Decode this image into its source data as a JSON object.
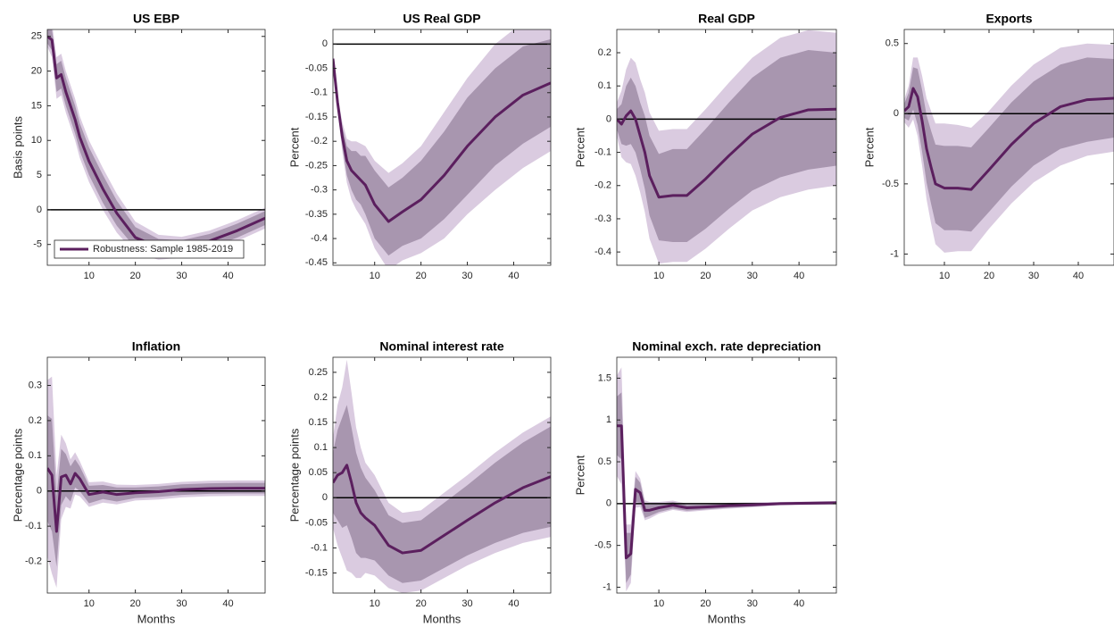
{
  "chart_data": [
    {
      "type": "line",
      "title": "US EBP",
      "ylabel": "Basis points",
      "legend": "lower left",
      "x": [
        1,
        2,
        3,
        4,
        5,
        6,
        7,
        8,
        10,
        13,
        16,
        20,
        25,
        30,
        36,
        42,
        48
      ],
      "xlim": [
        1,
        48
      ],
      "xticks": [
        10,
        20,
        30,
        40
      ],
      "ylim": [
        -8,
        26
      ],
      "yticks": [
        -5,
        0,
        5,
        10,
        15,
        20,
        25
      ],
      "hline": 0,
      "series": [
        {
          "name": "Robustness: Sample 1985-2019",
          "color": "#5b1f5e",
          "values": [
            25,
            24.5,
            19,
            19.5,
            17,
            15,
            13,
            10.5,
            7,
            3,
            -0.5,
            -4,
            -5.4,
            -5.4,
            -4.5,
            -3,
            -1.2
          ]
        }
      ],
      "bands": [
        {
          "color": "#dacbe0",
          "upper": [
            26.5,
            27,
            22,
            22.5,
            20,
            18,
            16,
            13.5,
            10,
            6,
            2.3,
            -1.7,
            -3.6,
            -3.9,
            -3,
            -1.5,
            0.3
          ],
          "lower": [
            23.5,
            22,
            16,
            16.5,
            14,
            12,
            10,
            7.5,
            4,
            0,
            -3.3,
            -6.3,
            -7.2,
            -6.9,
            -6,
            -4.5,
            -2.7
          ]
        },
        {
          "color": "#a896af",
          "upper": [
            26,
            26,
            21,
            21.5,
            19,
            17,
            15,
            12.5,
            9,
            5,
            1.3,
            -2.5,
            -4.2,
            -4.4,
            -3.5,
            -2,
            -0.2
          ],
          "lower": [
            24,
            23,
            17,
            17.5,
            15,
            13,
            11,
            8.5,
            5,
            1,
            -2.3,
            -5.5,
            -6.6,
            -6.4,
            -5.5,
            -4,
            -2.2
          ]
        }
      ]
    },
    {
      "type": "line",
      "title": "US Real GDP",
      "ylabel": "Percent",
      "x": [
        1,
        2,
        3,
        4,
        5,
        6,
        7,
        8,
        10,
        13,
        16,
        20,
        25,
        30,
        36,
        42,
        48
      ],
      "xlim": [
        1,
        48
      ],
      "xticks": [
        10,
        20,
        30,
        40
      ],
      "ylim": [
        -0.455,
        0.03
      ],
      "yticks": [
        -0.45,
        -0.4,
        -0.35,
        -0.3,
        -0.25,
        -0.2,
        -0.15,
        -0.1,
        -0.05,
        0
      ],
      "hline": 0,
      "series": [
        {
          "color": "#5b1f5e",
          "values": [
            -0.03,
            -0.12,
            -0.19,
            -0.24,
            -0.26,
            -0.27,
            -0.28,
            -0.29,
            -0.33,
            -0.365,
            -0.345,
            -0.32,
            -0.27,
            -0.21,
            -0.15,
            -0.105,
            -0.08
          ]
        }
      ],
      "bands": [
        {
          "color": "#dacbe0",
          "upper": [
            -0.03,
            -0.105,
            -0.16,
            -0.195,
            -0.2,
            -0.2,
            -0.205,
            -0.21,
            -0.24,
            -0.265,
            -0.245,
            -0.21,
            -0.14,
            -0.07,
            0,
            0.045,
            0.06
          ],
          "lower": [
            -0.03,
            -0.135,
            -0.22,
            -0.285,
            -0.32,
            -0.34,
            -0.355,
            -0.37,
            -0.42,
            -0.465,
            -0.445,
            -0.43,
            -0.4,
            -0.35,
            -0.3,
            -0.255,
            -0.22
          ]
        },
        {
          "color": "#a896af",
          "upper": [
            -0.03,
            -0.11,
            -0.17,
            -0.21,
            -0.22,
            -0.22,
            -0.23,
            -0.23,
            -0.26,
            -0.295,
            -0.275,
            -0.24,
            -0.18,
            -0.11,
            -0.05,
            -0.005,
            0.01
          ],
          "lower": [
            -0.03,
            -0.13,
            -0.21,
            -0.27,
            -0.3,
            -0.32,
            -0.33,
            -0.35,
            -0.4,
            -0.435,
            -0.415,
            -0.4,
            -0.36,
            -0.31,
            -0.25,
            -0.205,
            -0.17
          ]
        }
      ]
    },
    {
      "type": "line",
      "title": "Real GDP",
      "ylabel": "Percent",
      "x": [
        1,
        2,
        3,
        4,
        5,
        6,
        7,
        8,
        10,
        13,
        16,
        20,
        25,
        30,
        36,
        42,
        48
      ],
      "xlim": [
        1,
        48
      ],
      "xticks": [
        10,
        20,
        30,
        40
      ],
      "ylim": [
        -0.44,
        0.27
      ],
      "yticks": [
        -0.4,
        -0.3,
        -0.2,
        -0.1,
        0,
        0.1,
        0.2
      ],
      "hline": 0,
      "series": [
        {
          "color": "#5b1f5e",
          "values": [
            0,
            -0.015,
            0.01,
            0.025,
            0,
            -0.05,
            -0.1,
            -0.17,
            -0.235,
            -0.23,
            -0.23,
            -0.18,
            -0.11,
            -0.045,
            0.005,
            0.028,
            0.03
          ]
        }
      ],
      "bands": [
        {
          "color": "#dacbe0",
          "upper": [
            0.05,
            0.085,
            0.15,
            0.185,
            0.17,
            0.12,
            0.08,
            0.02,
            -0.035,
            -0.03,
            -0.03,
            0.03,
            0.11,
            0.185,
            0.245,
            0.268,
            0.26
          ],
          "lower": [
            -0.05,
            -0.115,
            -0.13,
            -0.135,
            -0.17,
            -0.22,
            -0.28,
            -0.36,
            -0.435,
            -0.43,
            -0.43,
            -0.39,
            -0.33,
            -0.275,
            -0.235,
            -0.212,
            -0.2
          ]
        },
        {
          "color": "#a896af",
          "upper": [
            0.03,
            0.045,
            0.1,
            0.125,
            0.1,
            0.05,
            0.01,
            -0.05,
            -0.105,
            -0.09,
            -0.09,
            -0.03,
            0.05,
            0.125,
            0.185,
            0.208,
            0.2
          ],
          "lower": [
            -0.03,
            -0.075,
            -0.08,
            -0.075,
            -0.1,
            -0.15,
            -0.21,
            -0.29,
            -0.365,
            -0.37,
            -0.37,
            -0.33,
            -0.27,
            -0.215,
            -0.175,
            -0.152,
            -0.14
          ]
        }
      ]
    },
    {
      "type": "line",
      "title": "Exports",
      "ylabel": "Percent",
      "x": [
        1,
        2,
        3,
        4,
        5,
        6,
        7,
        8,
        10,
        13,
        16,
        20,
        25,
        30,
        36,
        42,
        48
      ],
      "xlim": [
        1,
        48
      ],
      "xticks": [
        10,
        20,
        30,
        40
      ],
      "ylim": [
        -1.08,
        0.6
      ],
      "yticks": [
        -1,
        -0.5,
        0,
        0.5
      ],
      "hline": 0,
      "series": [
        {
          "color": "#5b1f5e",
          "values": [
            0.02,
            0.05,
            0.18,
            0.12,
            -0.05,
            -0.25,
            -0.38,
            -0.5,
            -0.53,
            -0.53,
            -0.54,
            -0.4,
            -0.22,
            -0.07,
            0.05,
            0.1,
            0.11
          ]
        }
      ],
      "bands": [
        {
          "color": "#dacbe0",
          "upper": [
            0.1,
            0.2,
            0.4,
            0.4,
            0.27,
            0.11,
            0.02,
            -0.07,
            -0.07,
            -0.08,
            -0.1,
            0.02,
            0.2,
            0.35,
            0.47,
            0.5,
            0.49
          ],
          "lower": [
            -0.06,
            -0.1,
            -0.04,
            -0.16,
            -0.37,
            -0.61,
            -0.78,
            -0.93,
            -0.99,
            -0.98,
            -0.98,
            -0.82,
            -0.64,
            -0.49,
            -0.37,
            -0.3,
            -0.27
          ]
        },
        {
          "color": "#a896af",
          "upper": [
            0.07,
            0.15,
            0.33,
            0.32,
            0.17,
            -0.01,
            -0.12,
            -0.22,
            -0.23,
            -0.23,
            -0.24,
            -0.1,
            0.08,
            0.23,
            0.35,
            0.4,
            0.39
          ],
          "lower": [
            -0.03,
            -0.05,
            0.03,
            -0.08,
            -0.27,
            -0.49,
            -0.64,
            -0.78,
            -0.83,
            -0.83,
            -0.84,
            -0.7,
            -0.52,
            -0.37,
            -0.25,
            -0.2,
            -0.17
          ]
        }
      ]
    },
    {
      "type": "line",
      "title": "Inflation",
      "ylabel": "Percentage points",
      "xlabel": "Months",
      "x": [
        1,
        2,
        3,
        4,
        5,
        6,
        7,
        8,
        10,
        13,
        16,
        20,
        25,
        30,
        36,
        42,
        48
      ],
      "xlim": [
        1,
        48
      ],
      "xticks": [
        10,
        20,
        30,
        40
      ],
      "ylim": [
        -0.29,
        0.38
      ],
      "yticks": [
        -0.2,
        -0.1,
        0,
        0.1,
        0.2,
        0.3
      ],
      "hline": 0,
      "series": [
        {
          "color": "#5b1f5e",
          "values": [
            0.065,
            0.045,
            -0.115,
            0.04,
            0.045,
            0.02,
            0.05,
            0.035,
            -0.01,
            -0.003,
            -0.01,
            -0.005,
            -0.002,
            0.004,
            0.007,
            0.008,
            0.008
          ]
        }
      ],
      "bands": [
        {
          "color": "#dacbe0",
          "upper": [
            0.315,
            0.325,
            0.045,
            0.16,
            0.135,
            0.09,
            0.11,
            0.085,
            0.025,
            0.027,
            0.018,
            0.017,
            0.02,
            0.026,
            0.029,
            0.03,
            0.03
          ],
          "lower": [
            -0.185,
            -0.235,
            -0.275,
            -0.08,
            -0.045,
            -0.05,
            -0.01,
            -0.015,
            -0.045,
            -0.033,
            -0.038,
            -0.027,
            -0.024,
            -0.018,
            -0.015,
            -0.014,
            -0.014
          ]
        },
        {
          "color": "#a896af",
          "upper": [
            0.215,
            0.205,
            -0.015,
            0.12,
            0.105,
            0.07,
            0.09,
            0.07,
            0.015,
            0.017,
            0.01,
            0.01,
            0.013,
            0.019,
            0.022,
            0.023,
            0.023
          ],
          "lower": [
            -0.085,
            -0.115,
            -0.215,
            -0.04,
            -0.015,
            -0.03,
            0.01,
            0,
            -0.035,
            -0.023,
            -0.03,
            -0.02,
            -0.017,
            -0.011,
            -0.008,
            -0.007,
            -0.007
          ]
        }
      ]
    },
    {
      "type": "line",
      "title": "Nominal interest rate",
      "ylabel": "Percentage points",
      "xlabel": "Months",
      "x": [
        1,
        2,
        3,
        4,
        5,
        6,
        7,
        8,
        10,
        13,
        16,
        20,
        25,
        30,
        36,
        42,
        48
      ],
      "xlim": [
        1,
        48
      ],
      "xticks": [
        10,
        20,
        30,
        40
      ],
      "ylim": [
        -0.19,
        0.28
      ],
      "yticks": [
        -0.15,
        -0.1,
        -0.05,
        0,
        0.05,
        0.1,
        0.15,
        0.2,
        0.25
      ],
      "hline": 0,
      "series": [
        {
          "color": "#5b1f5e",
          "values": [
            0.03,
            0.045,
            0.05,
            0.065,
            0.03,
            -0.01,
            -0.03,
            -0.04,
            -0.055,
            -0.095,
            -0.11,
            -0.105,
            -0.075,
            -0.045,
            -0.01,
            0.02,
            0.042
          ]
        }
      ],
      "bands": [
        {
          "color": "#dacbe0",
          "upper": [
            0.12,
            0.185,
            0.22,
            0.275,
            0.21,
            0.14,
            0.1,
            0.07,
            0.045,
            -0.01,
            -0.03,
            -0.025,
            0.01,
            0.045,
            0.09,
            0.13,
            0.162
          ],
          "lower": [
            -0.06,
            -0.095,
            -0.12,
            -0.145,
            -0.15,
            -0.16,
            -0.16,
            -0.15,
            -0.155,
            -0.18,
            -0.19,
            -0.185,
            -0.16,
            -0.135,
            -0.11,
            -0.09,
            -0.078
          ]
        },
        {
          "color": "#a896af",
          "upper": [
            0.09,
            0.135,
            0.16,
            0.185,
            0.14,
            0.09,
            0.06,
            0.04,
            0.015,
            -0.035,
            -0.05,
            -0.045,
            -0.01,
            0.025,
            0.07,
            0.11,
            0.142
          ],
          "lower": [
            -0.03,
            -0.045,
            -0.06,
            -0.055,
            -0.08,
            -0.11,
            -0.12,
            -0.12,
            -0.125,
            -0.155,
            -0.17,
            -0.165,
            -0.14,
            -0.115,
            -0.09,
            -0.07,
            -0.058
          ]
        }
      ]
    },
    {
      "type": "line",
      "title": "Nominal exch. rate depreciation",
      "ylabel": "Percent",
      "xlabel": "Months",
      "x": [
        1,
        2,
        3,
        4,
        5,
        6,
        7,
        8,
        10,
        13,
        16,
        20,
        25,
        30,
        36,
        42,
        48
      ],
      "xlim": [
        1,
        48
      ],
      "xticks": [
        10,
        20,
        30,
        40
      ],
      "ylim": [
        -1.07,
        1.75
      ],
      "yticks": [
        -1,
        -0.5,
        0,
        0.5,
        1,
        1.5
      ],
      "hline": 0,
      "series": [
        {
          "color": "#5b1f5e",
          "values": [
            0.93,
            0.93,
            -0.65,
            -0.6,
            0.17,
            0.13,
            -0.08,
            -0.08,
            -0.05,
            -0.02,
            -0.05,
            -0.04,
            -0.025,
            -0.015,
            0,
            0.005,
            0.01
          ]
        }
      ],
      "bands": [
        {
          "color": "#dacbe0",
          "upper": [
            1.53,
            1.63,
            -0.25,
            -0.25,
            0.39,
            0.3,
            0.04,
            0.02,
            0.02,
            0.035,
            0,
            0,
            0.01,
            0.015,
            0.02,
            0.025,
            0.03
          ],
          "lower": [
            0.33,
            0.23,
            -1.05,
            -0.95,
            -0.05,
            -0.04,
            -0.2,
            -0.18,
            -0.12,
            -0.075,
            -0.1,
            -0.08,
            -0.06,
            -0.045,
            -0.02,
            -0.015,
            -0.01
          ]
        },
        {
          "color": "#a896af",
          "upper": [
            1.28,
            1.33,
            -0.35,
            -0.35,
            0.32,
            0.25,
            0.01,
            -0.01,
            0,
            0.02,
            -0.015,
            -0.01,
            0,
            0.005,
            0.015,
            0.02,
            0.025
          ],
          "lower": [
            0.58,
            0.53,
            -0.95,
            -0.85,
            0.02,
            0.01,
            -0.17,
            -0.15,
            -0.1,
            -0.06,
            -0.085,
            -0.07,
            -0.05,
            -0.035,
            -0.015,
            -0.01,
            -0.005
          ]
        }
      ]
    }
  ]
}
